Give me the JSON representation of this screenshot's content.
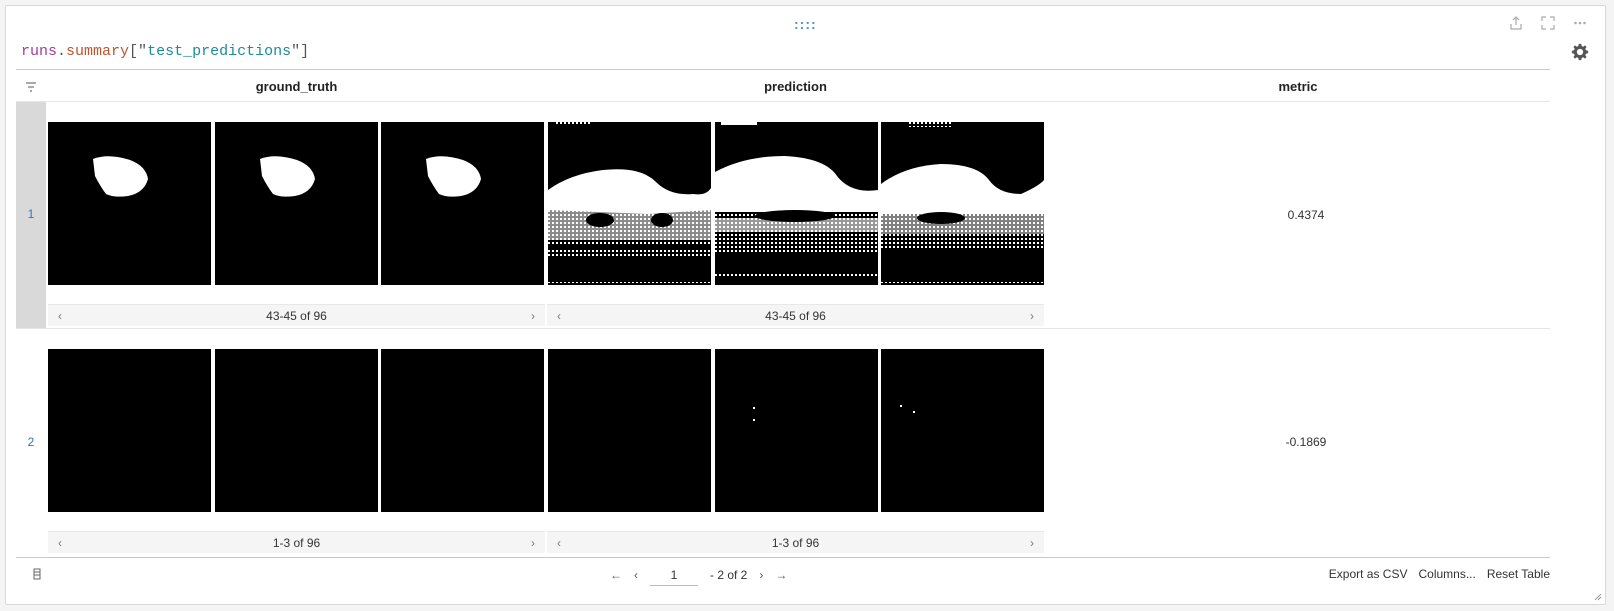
{
  "query": {
    "object": "runs",
    "dot": ".",
    "property": "summary",
    "open": "[\"",
    "key": "test_predictions",
    "close": "\"]"
  },
  "handle": "::::",
  "columns": [
    "ground_truth",
    "prediction",
    "metric"
  ],
  "rows": [
    {
      "number": "1",
      "ground_truth_pager": "43-45 of 96",
      "prediction_pager": "43-45 of 96",
      "metric": "0.4374"
    },
    {
      "number": "2",
      "ground_truth_pager": "1-3 of 96",
      "prediction_pager": "1-3 of 96",
      "metric": "-0.1869"
    }
  ],
  "pagination": {
    "first": "←",
    "prev": "‹",
    "current_page": "1",
    "of_text": "- 2 of 2",
    "next": "›",
    "last": "→"
  },
  "footer_actions": {
    "export": "Export as CSV",
    "columns": "Columns...",
    "reset": "Reset Table"
  },
  "pager_arrows": {
    "left": "‹",
    "right": "›"
  }
}
